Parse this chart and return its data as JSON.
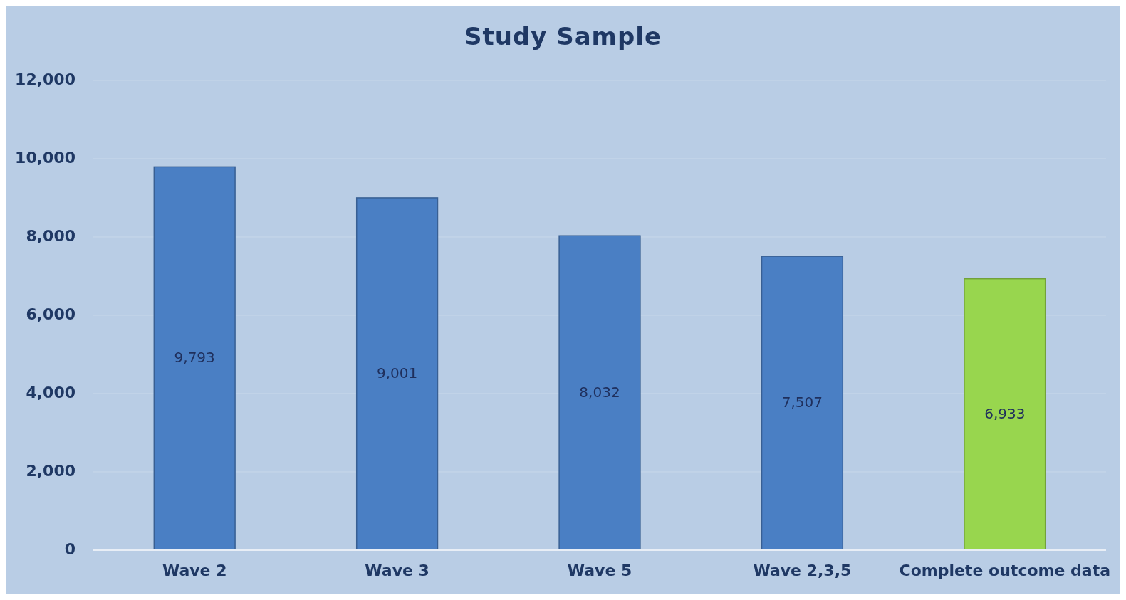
{
  "chart_data": {
    "type": "bar",
    "title": "Study Sample",
    "categories": [
      "Wave 2",
      "Wave 3",
      "Wave 5",
      "Wave 2,3,5",
      "Complete outcome data"
    ],
    "values": [
      9793,
      9001,
      8032,
      7507,
      6933
    ],
    "colors": [
      "#4a7fc4",
      "#4a7fc4",
      "#4a7fc4",
      "#4a7fc4",
      "#98d64e"
    ],
    "ylim": [
      0,
      12000
    ],
    "yticks": [
      {
        "value": 0,
        "label": "0"
      },
      {
        "value": 2000,
        "label": "2,000"
      },
      {
        "value": 4000,
        "label": "4,000"
      },
      {
        "value": 6000,
        "label": "6,000"
      },
      {
        "value": 8000,
        "label": "8,000"
      },
      {
        "value": 10000,
        "label": "10,000"
      },
      {
        "value": 12000,
        "label": "12,000"
      }
    ],
    "value_labels": [
      "9,793",
      "9,001",
      "8,032",
      "7,507",
      "6,933"
    ],
    "grid": "y"
  }
}
